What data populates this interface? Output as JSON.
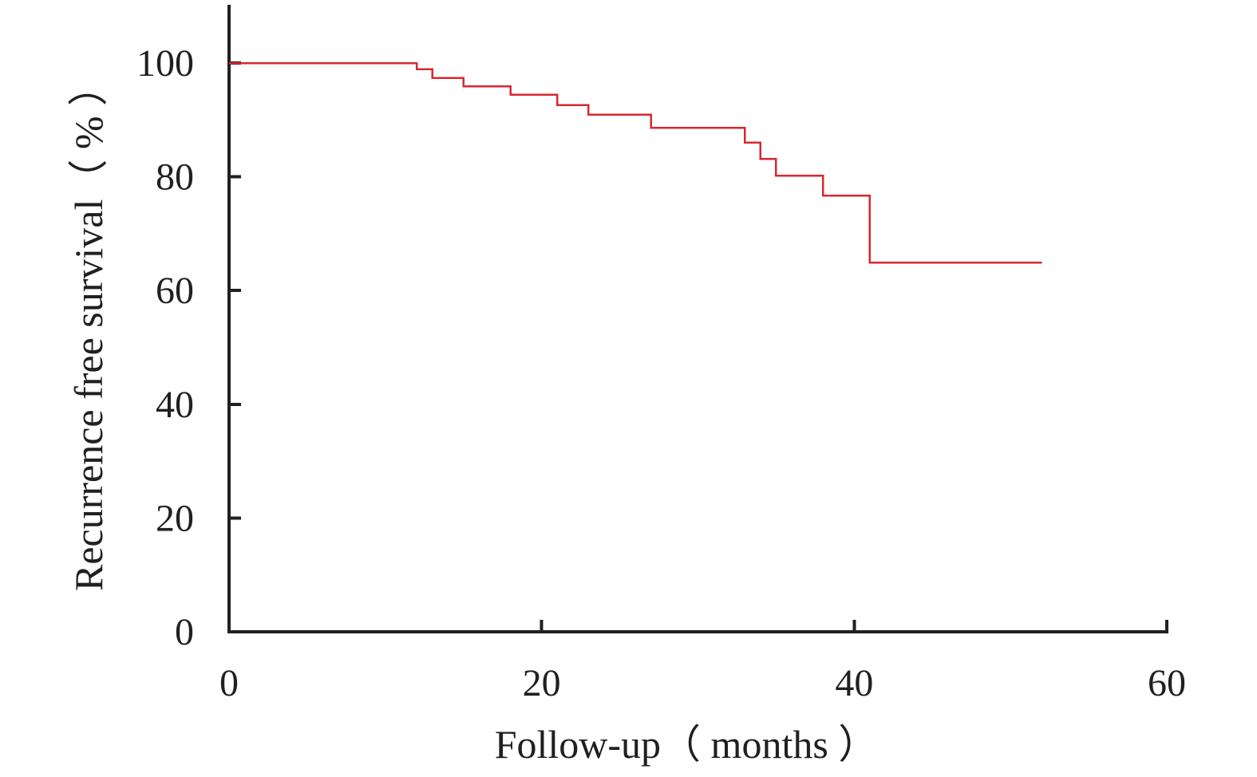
{
  "chart_data": {
    "type": "line",
    "title": "",
    "xlabel": "Follow-up（ months ）",
    "ylabel": "Recurrence free survival（ % ）",
    "xlim": [
      0,
      60
    ],
    "ylim": [
      0,
      110
    ],
    "x_ticks": [
      0,
      20,
      40,
      60
    ],
    "y_ticks": [
      0,
      20,
      40,
      60,
      80,
      100
    ],
    "x_tick_labels": [
      "0",
      "20",
      "40",
      "60"
    ],
    "y_tick_labels": [
      "0",
      "20",
      "40",
      "60",
      "80",
      "100"
    ],
    "grid": false,
    "legend": "none",
    "step": "post",
    "color": "#d7282f",
    "series": [
      {
        "x": [
          0,
          12,
          13,
          15,
          18,
          21,
          23,
          27,
          33,
          34,
          35,
          38,
          41,
          52
        ],
        "y": [
          100,
          98.9,
          97.4,
          95.9,
          94.4,
          92.6,
          90.9,
          88.6,
          86.0,
          83.1,
          80.2,
          76.7,
          64.9,
          64.9
        ]
      }
    ]
  }
}
